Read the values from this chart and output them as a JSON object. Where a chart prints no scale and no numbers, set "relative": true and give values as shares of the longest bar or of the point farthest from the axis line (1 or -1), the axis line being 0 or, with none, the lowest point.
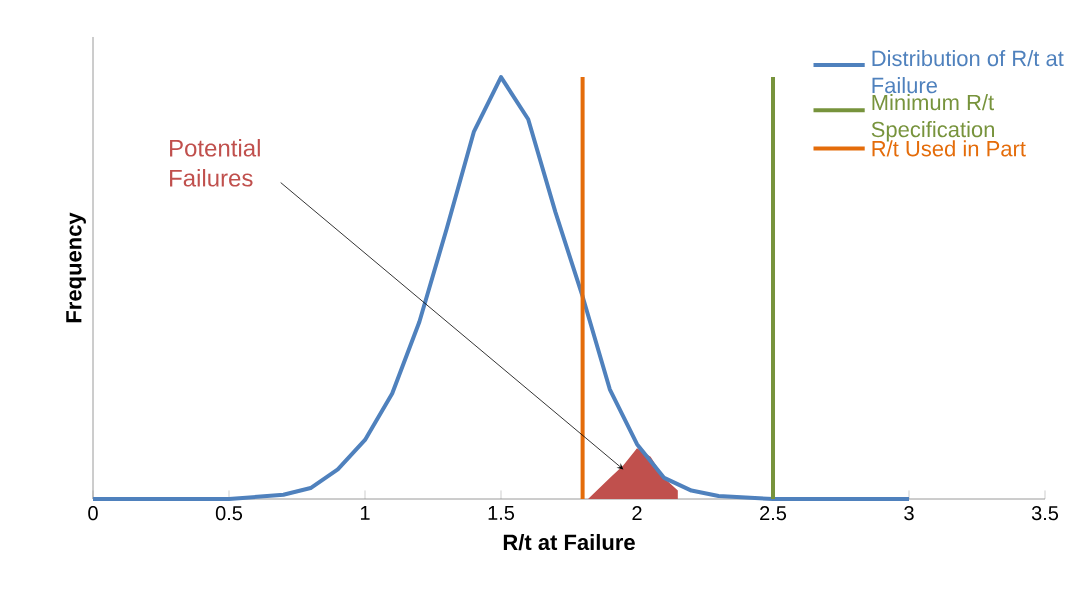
{
  "chart_data": {
    "type": "line",
    "relative": true,
    "xlabel": "R/t at Failure",
    "ylabel": "Frequency",
    "xlim": [
      0,
      3.5
    ],
    "xticks": [
      0,
      0.5,
      1,
      1.5,
      2,
      2.5,
      3,
      3.5
    ],
    "series": [
      {
        "name": "Distribution of R/t at Failure",
        "color": "#4f81bd",
        "x": [
          0,
          0.5,
          0.7,
          0.8,
          0.9,
          1.0,
          1.1,
          1.2,
          1.3,
          1.4,
          1.5,
          1.6,
          1.7,
          1.8,
          1.9,
          2.0,
          2.1,
          2.2,
          2.3,
          2.5,
          3.0
        ],
        "values": [
          0,
          0,
          0.01,
          0.026,
          0.07,
          0.14,
          0.25,
          0.42,
          0.64,
          0.87,
          1.0,
          0.9,
          0.68,
          0.48,
          0.26,
          0.13,
          0.05,
          0.02,
          0.007,
          0,
          0
        ]
      },
      {
        "name": "Minimum R/t Specification",
        "color": "#77933c",
        "x": [
          2.5,
          2.5
        ],
        "values": [
          0,
          1
        ]
      },
      {
        "name": "R/t Used in Part",
        "color": "#e46c0a",
        "x": [
          1.8,
          1.8
        ],
        "values": [
          0,
          1
        ]
      },
      {
        "type": "area",
        "color": "#c0504d",
        "x": [
          1.82,
          1.9,
          1.95,
          2.0,
          2.05,
          2.1,
          2.15
        ],
        "values": [
          0,
          0.05,
          0.08,
          0.12,
          0.1,
          0.05,
          0.02
        ]
      }
    ],
    "annotations": [
      {
        "text": "Potential Failures",
        "x": 1.95,
        "y": 0.07
      }
    ],
    "legend": "top right",
    "marker": "none",
    "line_style": "solid"
  }
}
